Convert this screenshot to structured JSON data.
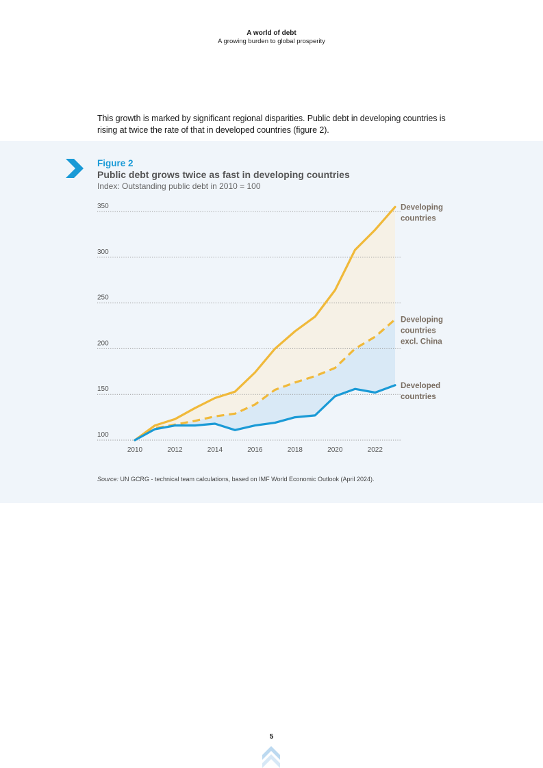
{
  "header": {
    "title": "A world of debt",
    "subtitle": "A growing burden to global prosperity"
  },
  "intro_text": "This growth is marked by significant regional disparities. Public debt in developing countries is rising at twice the rate of that in developed countries (figure 2).",
  "figure": {
    "label": "Figure 2",
    "title": "Public debt grows twice as fast in developing countries",
    "subtitle": "Index: Outstanding public debt in 2010 = 100",
    "source_label": "Source:",
    "source_text": " UN GCRG - technical team calculations, based on IMF World Economic Outlook (April 2024)."
  },
  "page_number": "5",
  "colors": {
    "developing": "#f0b93a",
    "developed": "#1a9ad6",
    "fill_upper": "#f6f1e6",
    "fill_lower": "#d9e9f6",
    "panel": "#f0f5fa",
    "accent": "#1a9ad6"
  },
  "chart_data": {
    "type": "line",
    "x": [
      2010,
      2011,
      2012,
      2013,
      2014,
      2015,
      2016,
      2017,
      2018,
      2019,
      2020,
      2021,
      2022,
      2023
    ],
    "x_ticks": [
      2010,
      2012,
      2014,
      2016,
      2018,
      2020,
      2022
    ],
    "x_tick_labels": [
      "2010",
      "2012",
      "2014",
      "2016",
      "2018",
      "2020",
      "2022"
    ],
    "y_ticks": [
      100,
      150,
      200,
      250,
      300,
      350
    ],
    "y_tick_labels": [
      "100",
      "150",
      "200",
      "250",
      "300",
      "350"
    ],
    "ylim": [
      100,
      350
    ],
    "grid": true,
    "series": [
      {
        "name": "Developing countries",
        "label_lines": [
          "Developing",
          "countries"
        ],
        "style": "solid",
        "values": [
          100,
          116,
          123,
          135,
          146,
          153,
          174,
          200,
          219,
          235,
          264,
          308,
          330,
          355
        ]
      },
      {
        "name": "Developing countries excl. China",
        "label_lines": [
          "Developing",
          "countries",
          "excl. China"
        ],
        "style": "dashed",
        "values": [
          100,
          113,
          117,
          121,
          126,
          129,
          139,
          155,
          163,
          170,
          179,
          200,
          213,
          232
        ]
      },
      {
        "name": "Developed countries",
        "label_lines": [
          "Developed",
          "countries"
        ],
        "style": "solid",
        "values": [
          100,
          112,
          116,
          116,
          118,
          111,
          116,
          119,
          125,
          127,
          148,
          156,
          152,
          160
        ]
      }
    ]
  }
}
